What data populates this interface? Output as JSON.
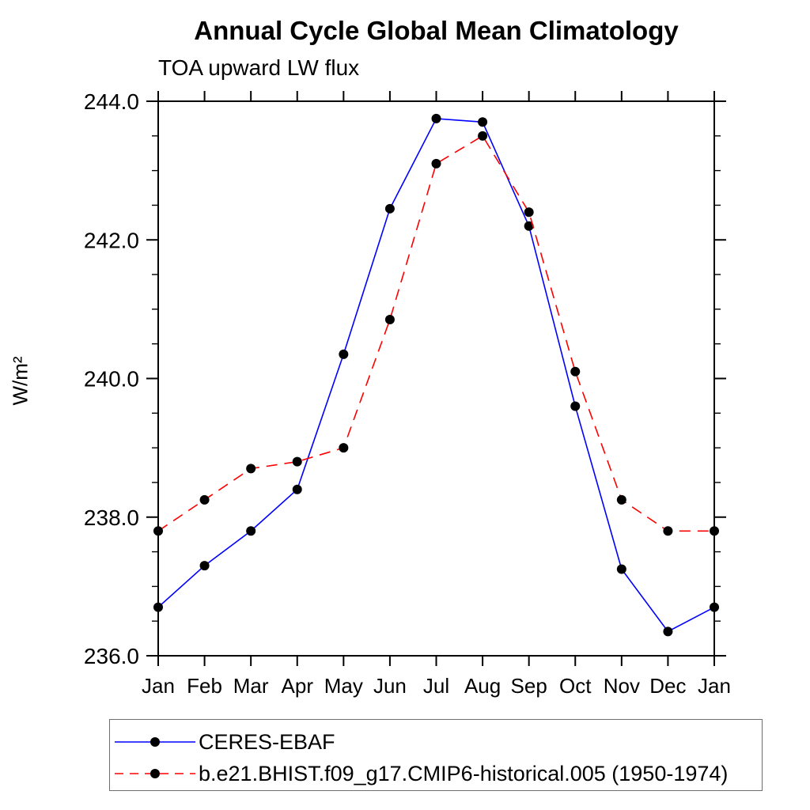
{
  "title": "Annual Cycle Global Mean Climatology",
  "subtitle": "TOA upward LW flux",
  "ylabel": "W/m²",
  "colors": {
    "obs_line": "#0000ff",
    "model_line": "#ff0000",
    "marker": "#000000",
    "axis": "#000000",
    "legend_border": "#6e6e6e",
    "background": "#ffffff"
  },
  "chart_data": {
    "type": "line",
    "title": "Annual Cycle Global Mean Climatology",
    "subtitle": "TOA upward LW flux",
    "xlabel": "",
    "ylabel": "W/m²",
    "categories": [
      "Jan",
      "Feb",
      "Mar",
      "Apr",
      "May",
      "Jun",
      "Jul",
      "Aug",
      "Sep",
      "Oct",
      "Nov",
      "Dec",
      "Jan"
    ],
    "ylim": [
      236.0,
      244.0
    ],
    "ytick_major_interval": 2.0,
    "ytick_minor_interval": 0.5,
    "ytick_labels": [
      "236.0",
      "238.0",
      "240.0",
      "242.0",
      "244.0"
    ],
    "grid": false,
    "legend_position": "bottom-left",
    "series": [
      {
        "name": "CERES-EBAF",
        "color": "#0000ff",
        "style": "solid",
        "marker": "circle",
        "values": [
          236.7,
          237.3,
          237.8,
          238.4,
          240.35,
          242.45,
          243.75,
          243.7,
          242.2,
          239.6,
          237.25,
          236.35,
          236.7
        ]
      },
      {
        "name": "b.e21.BHIST.f09_g17.CMIP6-historical.005 (1950-1974)",
        "color": "#ff0000",
        "style": "dashed",
        "marker": "circle",
        "values": [
          237.8,
          238.25,
          238.7,
          238.8,
          239.0,
          240.85,
          243.1,
          243.5,
          242.4,
          240.1,
          238.25,
          237.8,
          237.8
        ]
      }
    ]
  }
}
